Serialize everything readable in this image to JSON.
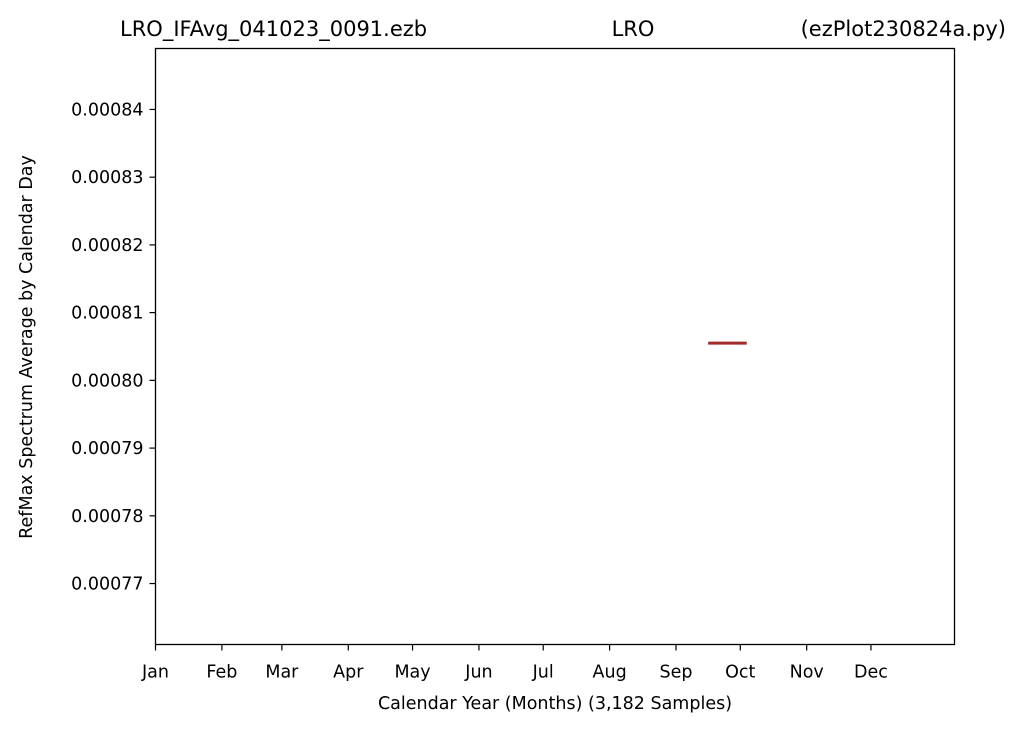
{
  "chart_data": {
    "type": "line",
    "title_left": "LRO_IFAvg_041023_0091.ezb",
    "title_center": "LRO",
    "title_right": "(ezPlot230824a.py)",
    "xlabel": "Calendar Year (Months) (3,182 Samples)",
    "ylabel": "RefMax Spectrum Average by Calendar Day",
    "x_tick_labels": [
      "Jan",
      "Feb",
      "Mar",
      "Apr",
      "May",
      "Jun",
      "Jul",
      "Aug",
      "Sep",
      "Oct",
      "Nov",
      "Dec"
    ],
    "x_tick_days": [
      1,
      32,
      60,
      91,
      121,
      152,
      182,
      213,
      244,
      274,
      305,
      335
    ],
    "xlim": [
      1,
      374
    ],
    "y_ticks": [
      0.00077,
      0.00078,
      0.00079,
      0.0008,
      0.00081,
      0.00082,
      0.00083,
      0.00084
    ],
    "y_tick_labels": [
      "0.00077",
      "0.00078",
      "0.00079",
      "0.00080",
      "0.00081",
      "0.00082",
      "0.00083",
      "0.00084"
    ],
    "ylim": [
      0.000761,
      0.000849
    ],
    "grid": false,
    "series": [
      {
        "color": "#a52a2a",
        "x": [
          259,
          260,
          261,
          262,
          263,
          264,
          265,
          266,
          267,
          268,
          269,
          270,
          271,
          272,
          273,
          274,
          275,
          276,
          277
        ],
        "y": [
          0.0008055,
          0.0008055,
          0.0008055,
          0.0008055,
          0.0008055,
          0.0008055,
          0.0008055,
          0.0008055,
          0.0008055,
          0.0008055,
          0.0008055,
          0.0008055,
          0.0008055,
          0.0008055,
          0.0008055,
          0.0008055,
          0.0008055,
          0.0008055,
          0.0008055
        ]
      }
    ]
  }
}
